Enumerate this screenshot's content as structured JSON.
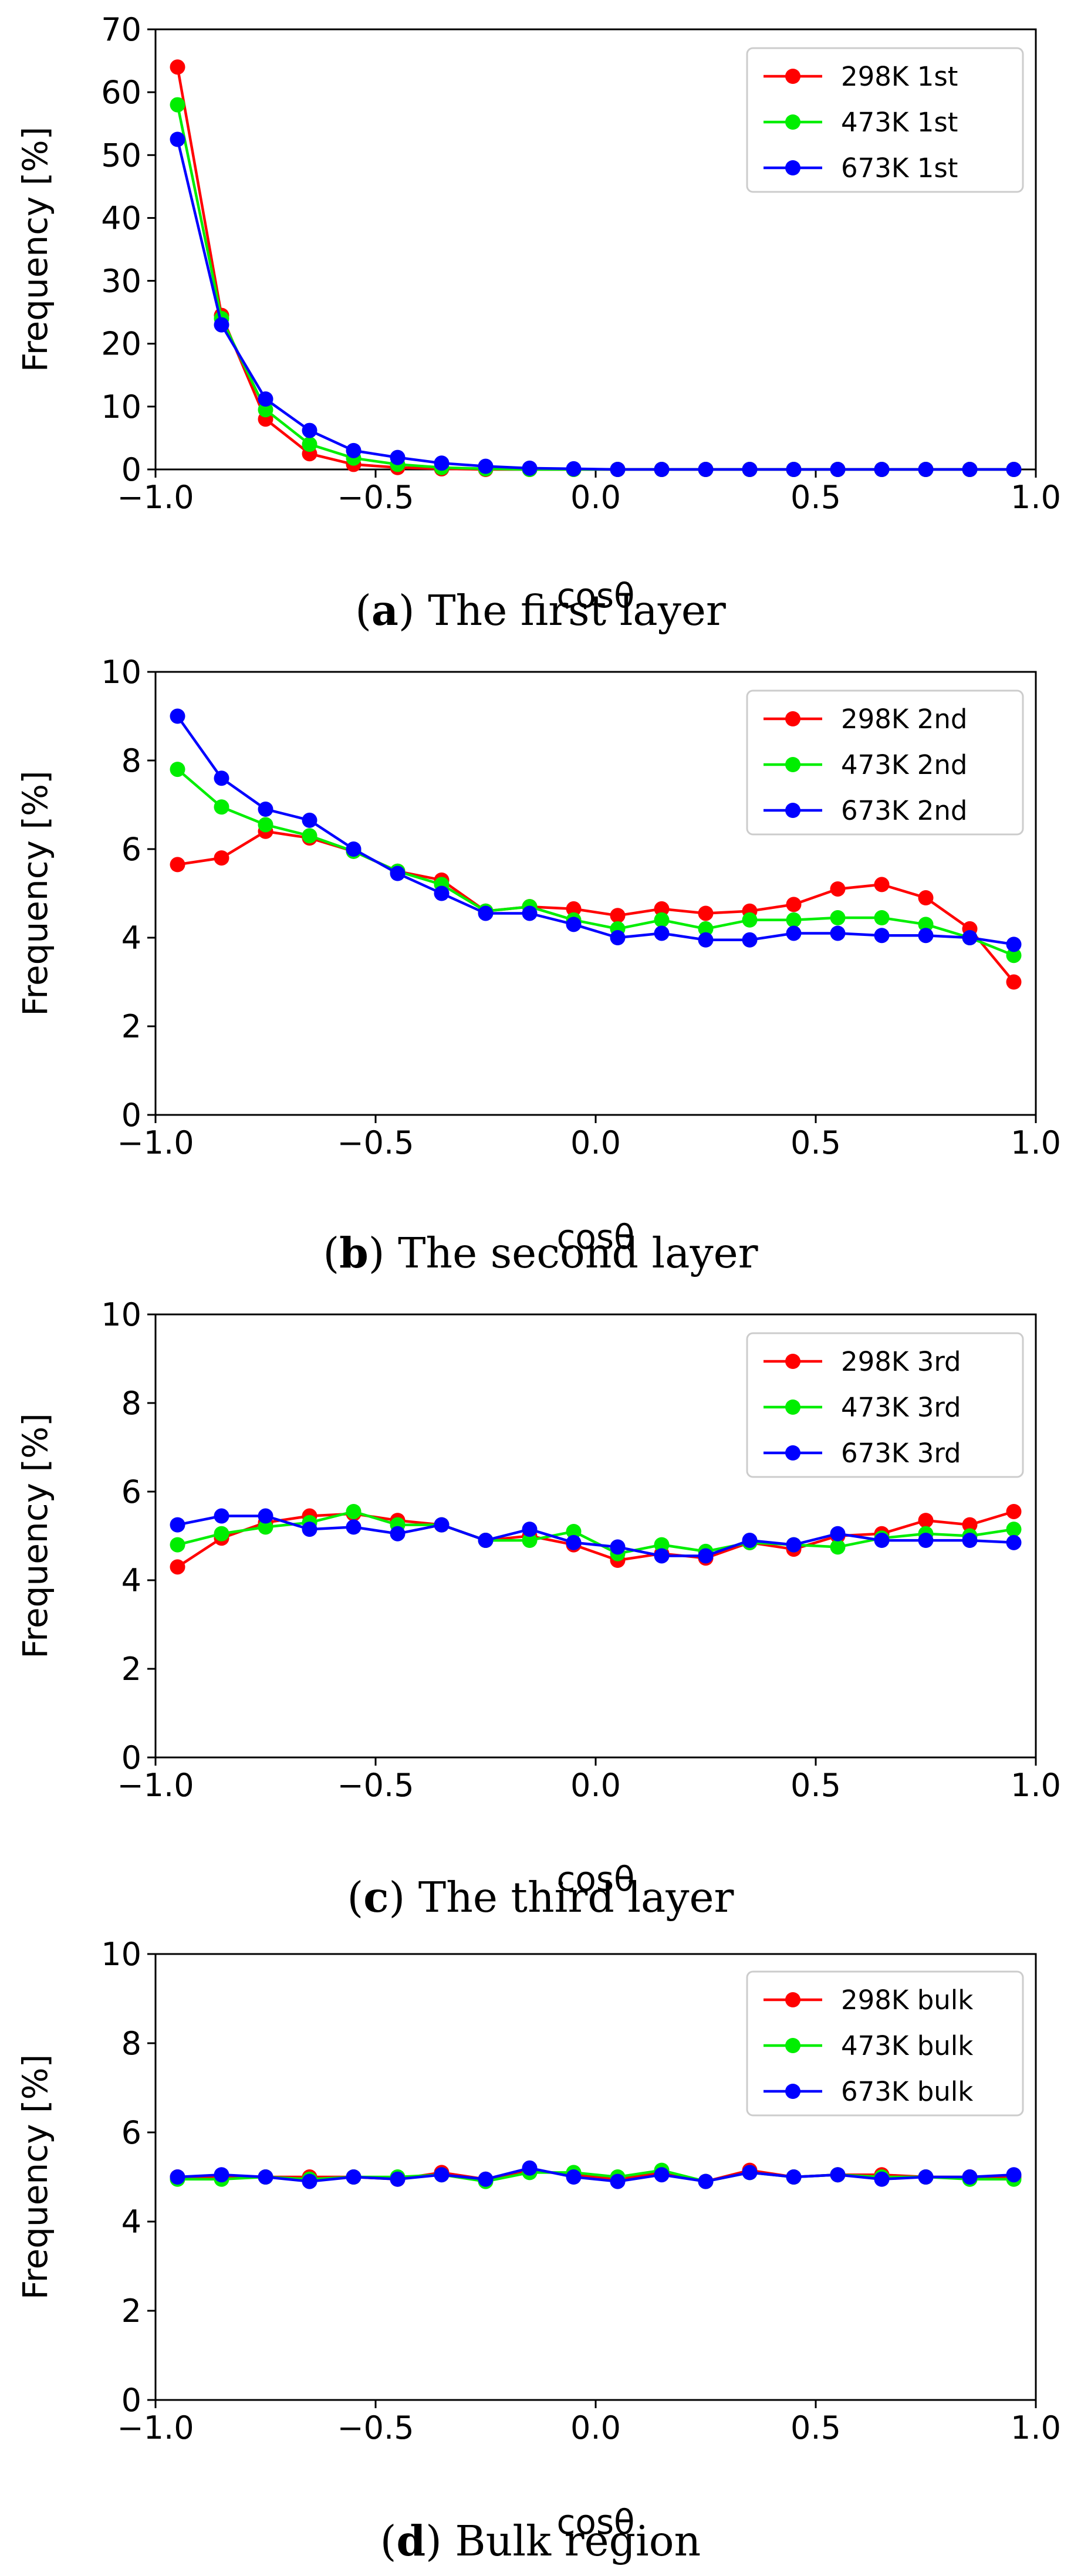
{
  "chart_data": [
    {
      "type": "line",
      "panel": "a",
      "caption_letter": "a",
      "caption_text": "The first layer",
      "xlabel": "cosθ",
      "ylabel": "Frequency [%]",
      "xlim": [
        -1.0,
        1.0
      ],
      "ylim": [
        0,
        70
      ],
      "x_ticks": [
        -1.0,
        -0.5,
        0.0,
        0.5,
        1.0
      ],
      "x_tick_labels": [
        "−1.0",
        "−0.5",
        "0.0",
        "0.5",
        "1.0"
      ],
      "y_ticks": [
        0,
        10,
        20,
        30,
        40,
        50,
        60,
        70
      ],
      "y_tick_labels": [
        "0",
        "10",
        "20",
        "30",
        "40",
        "50",
        "60",
        "70"
      ],
      "legend_position": "top-right",
      "x": [
        -0.95,
        -0.85,
        -0.75,
        -0.65,
        -0.55,
        -0.45,
        -0.35,
        -0.25,
        -0.15,
        -0.05,
        0.05,
        0.15,
        0.25,
        0.35,
        0.45,
        0.55,
        0.65,
        0.75,
        0.85,
        0.95
      ],
      "series": [
        {
          "name": "298K 1st",
          "color": "#ff0000",
          "values": [
            64.0,
            24.5,
            8.0,
            2.5,
            0.8,
            0.3,
            0.1,
            0,
            0,
            0,
            0,
            0,
            0,
            0,
            0,
            0,
            0,
            0,
            0,
            0
          ]
        },
        {
          "name": "473K 1st",
          "color": "#00ee00",
          "values": [
            58.0,
            24.0,
            9.5,
            4.0,
            1.8,
            0.8,
            0.3,
            0.1,
            0,
            0,
            0,
            0,
            0,
            0,
            0,
            0,
            0,
            0,
            0,
            0
          ]
        },
        {
          "name": "673K 1st",
          "color": "#0000ff",
          "values": [
            52.5,
            23.0,
            11.2,
            6.2,
            3.0,
            1.9,
            1.0,
            0.5,
            0.2,
            0.1,
            0,
            0,
            0,
            0,
            0,
            0,
            0,
            0,
            0,
            0
          ]
        }
      ]
    },
    {
      "type": "line",
      "panel": "b",
      "caption_letter": "b",
      "caption_text": "The second layer",
      "xlabel": "cosθ",
      "ylabel": "Frequency [%]",
      "xlim": [
        -1.0,
        1.0
      ],
      "ylim": [
        0,
        10
      ],
      "x_ticks": [
        -1.0,
        -0.5,
        0.0,
        0.5,
        1.0
      ],
      "x_tick_labels": [
        "−1.0",
        "−0.5",
        "0.0",
        "0.5",
        "1.0"
      ],
      "y_ticks": [
        0,
        2,
        4,
        6,
        8,
        10
      ],
      "y_tick_labels": [
        "0",
        "2",
        "4",
        "6",
        "8",
        "10"
      ],
      "legend_position": "top-right",
      "x": [
        -0.95,
        -0.85,
        -0.75,
        -0.65,
        -0.55,
        -0.45,
        -0.35,
        -0.25,
        -0.15,
        -0.05,
        0.05,
        0.15,
        0.25,
        0.35,
        0.45,
        0.55,
        0.65,
        0.75,
        0.85,
        0.95
      ],
      "series": [
        {
          "name": "298K 2nd",
          "color": "#ff0000",
          "values": [
            5.65,
            5.8,
            6.4,
            6.25,
            5.95,
            5.5,
            5.3,
            4.6,
            4.7,
            4.65,
            4.5,
            4.65,
            4.55,
            4.6,
            4.75,
            5.1,
            5.2,
            4.9,
            4.2,
            3.0
          ]
        },
        {
          "name": "473K 2nd",
          "color": "#00ee00",
          "values": [
            7.8,
            6.95,
            6.55,
            6.3,
            5.95,
            5.5,
            5.2,
            4.6,
            4.7,
            4.4,
            4.2,
            4.4,
            4.2,
            4.4,
            4.4,
            4.45,
            4.45,
            4.3,
            4.0,
            3.6
          ]
        },
        {
          "name": "673K 2nd",
          "color": "#0000ff",
          "values": [
            9.0,
            7.6,
            6.9,
            6.65,
            6.0,
            5.45,
            5.0,
            4.55,
            4.55,
            4.3,
            4.0,
            4.1,
            3.95,
            3.95,
            4.1,
            4.1,
            4.05,
            4.05,
            4.0,
            3.85
          ]
        }
      ]
    },
    {
      "type": "line",
      "panel": "c",
      "caption_letter": "c",
      "caption_text": "The third layer",
      "xlabel": "cosθ",
      "ylabel": "Frequency [%]",
      "xlim": [
        -1.0,
        1.0
      ],
      "ylim": [
        0,
        10
      ],
      "x_ticks": [
        -1.0,
        -0.5,
        0.0,
        0.5,
        1.0
      ],
      "x_tick_labels": [
        "−1.0",
        "−0.5",
        "0.0",
        "0.5",
        "1.0"
      ],
      "y_ticks": [
        0,
        2,
        4,
        6,
        8,
        10
      ],
      "y_tick_labels": [
        "0",
        "2",
        "4",
        "6",
        "8",
        "10"
      ],
      "legend_position": "top-right",
      "x": [
        -0.95,
        -0.85,
        -0.75,
        -0.65,
        -0.55,
        -0.45,
        -0.35,
        -0.25,
        -0.15,
        -0.05,
        0.05,
        0.15,
        0.25,
        0.35,
        0.45,
        0.55,
        0.65,
        0.75,
        0.85,
        0.95
      ],
      "series": [
        {
          "name": "298K 3rd",
          "color": "#ff0000",
          "values": [
            4.3,
            4.95,
            5.3,
            5.45,
            5.5,
            5.35,
            5.25,
            4.9,
            5.0,
            4.8,
            4.45,
            4.6,
            4.5,
            4.85,
            4.7,
            5.0,
            5.05,
            5.35,
            5.25,
            5.55
          ]
        },
        {
          "name": "473K 3rd",
          "color": "#00ee00",
          "values": [
            4.8,
            5.05,
            5.2,
            5.3,
            5.55,
            5.25,
            5.25,
            4.9,
            4.9,
            5.1,
            4.6,
            4.8,
            4.65,
            4.85,
            4.8,
            4.75,
            4.95,
            5.05,
            5.0,
            5.15
          ]
        },
        {
          "name": "673K 3rd",
          "color": "#0000ff",
          "values": [
            5.25,
            5.45,
            5.45,
            5.15,
            5.2,
            5.05,
            5.25,
            4.9,
            5.15,
            4.85,
            4.75,
            4.55,
            4.55,
            4.9,
            4.8,
            5.05,
            4.9,
            4.9,
            4.9,
            4.85
          ]
        }
      ]
    },
    {
      "type": "line",
      "panel": "d",
      "caption_letter": "d",
      "caption_text": "Bulk region",
      "xlabel": "cosθ",
      "ylabel": "Frequency [%]",
      "xlim": [
        -1.0,
        1.0
      ],
      "ylim": [
        0,
        10
      ],
      "x_ticks": [
        -1.0,
        -0.5,
        0.0,
        0.5,
        1.0
      ],
      "x_tick_labels": [
        "−1.0",
        "−0.5",
        "0.0",
        "0.5",
        "1.0"
      ],
      "y_ticks": [
        0,
        2,
        4,
        6,
        8,
        10
      ],
      "y_tick_labels": [
        "0",
        "2",
        "4",
        "6",
        "8",
        "10"
      ],
      "legend_position": "top-right",
      "x": [
        -0.95,
        -0.85,
        -0.75,
        -0.65,
        -0.55,
        -0.45,
        -0.35,
        -0.25,
        -0.15,
        -0.05,
        0.05,
        0.15,
        0.25,
        0.35,
        0.45,
        0.55,
        0.65,
        0.75,
        0.85,
        0.95
      ],
      "series": [
        {
          "name": "298K bulk",
          "color": "#ff0000",
          "values": [
            5.0,
            5.0,
            5.0,
            5.0,
            5.0,
            4.95,
            5.1,
            4.95,
            5.15,
            5.05,
            4.95,
            5.1,
            4.9,
            5.15,
            5.0,
            5.05,
            5.05,
            5.0,
            5.0,
            5.0
          ]
        },
        {
          "name": "473K bulk",
          "color": "#00ee00",
          "values": [
            4.95,
            4.95,
            5.0,
            4.95,
            5.0,
            5.0,
            5.05,
            4.9,
            5.1,
            5.1,
            5.0,
            5.15,
            4.9,
            5.1,
            5.0,
            5.05,
            5.0,
            5.0,
            4.95,
            4.95
          ]
        },
        {
          "name": "673K bulk",
          "color": "#0000ff",
          "values": [
            5.0,
            5.05,
            5.0,
            4.9,
            5.0,
            4.95,
            5.05,
            4.95,
            5.2,
            5.0,
            4.9,
            5.05,
            4.9,
            5.1,
            5.0,
            5.05,
            4.95,
            5.0,
            5.0,
            5.05
          ]
        }
      ]
    }
  ]
}
